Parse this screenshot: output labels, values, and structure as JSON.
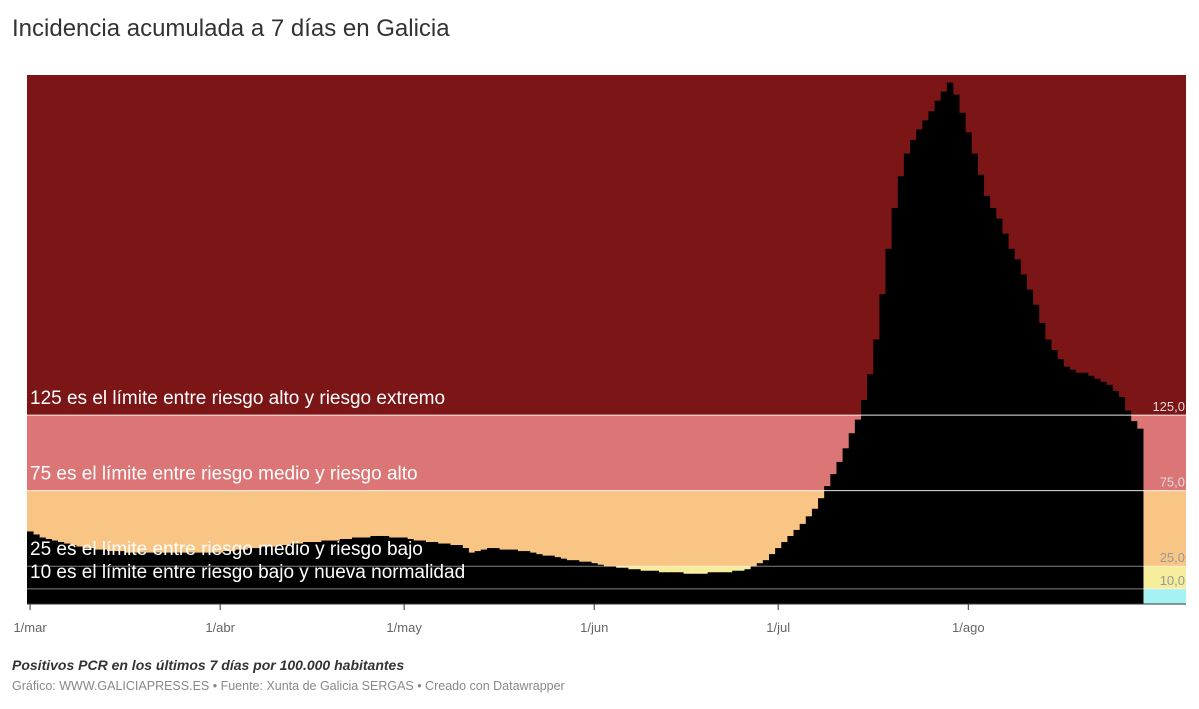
{
  "chart_data": {
    "type": "bar",
    "title": "Incidencia acumulada a 7 días en Galicia",
    "subtitle": "Positivos PCR en los últimos 7 días por 100.000 habitantes",
    "footer": "Gráfico: WWW.GALICIAPRESS.ES • Fuente: Xunta de Galicia SERGAS • Creado con Datawrapper",
    "color": "#000000",
    "xlim": [
      -0.5,
      188.5
    ],
    "ylim": [
      0,
      350
    ],
    "xticks": [
      {
        "value": 0,
        "label": "1/mar"
      },
      {
        "value": 31,
        "label": "1/abr"
      },
      {
        "value": 61,
        "label": "1/may"
      },
      {
        "value": 92,
        "label": "1/jun"
      },
      {
        "value": 122,
        "label": "1/jul"
      },
      {
        "value": 153,
        "label": "1/ago"
      }
    ],
    "yticks": [
      {
        "value": 125,
        "label": "125,0"
      },
      {
        "value": 75,
        "label": "75,0"
      },
      {
        "value": 25,
        "label": "25,0"
      },
      {
        "value": 10,
        "label": "10,0"
      }
    ],
    "zones": [
      {
        "from": 0,
        "to": 10,
        "color": "#a6f1f1"
      },
      {
        "from": 10,
        "to": 25,
        "color": "#f5ec9c"
      },
      {
        "from": 25,
        "to": 75,
        "color": "#f9c584"
      },
      {
        "from": 75,
        "to": 125,
        "color": "#dc7575"
      },
      {
        "from": 125,
        "to": 350,
        "color": "#7c1515"
      }
    ],
    "annotations": [
      {
        "value": 125,
        "text": "125 es el límite entre riesgo alto y riesgo extremo"
      },
      {
        "value": 75,
        "text": "75 es el límite entre riesgo medio y riesgo alto"
      },
      {
        "value": 25,
        "text": "25 es el límite entre riesgo medio y riesgo bajo"
      },
      {
        "value": 10,
        "text": "10 es el límite entre riesgo bajo y nueva normalidad"
      }
    ],
    "x": [
      0,
      1,
      2,
      3,
      4,
      5,
      6,
      7,
      8,
      9,
      10,
      11,
      12,
      13,
      14,
      15,
      16,
      17,
      18,
      19,
      20,
      21,
      22,
      23,
      24,
      25,
      26,
      27,
      28,
      29,
      30,
      31,
      32,
      33,
      34,
      35,
      36,
      37,
      38,
      39,
      40,
      41,
      42,
      43,
      44,
      45,
      46,
      47,
      48,
      49,
      50,
      51,
      52,
      53,
      54,
      55,
      56,
      57,
      58,
      59,
      60,
      61,
      62,
      63,
      64,
      65,
      66,
      67,
      68,
      69,
      70,
      71,
      72,
      73,
      74,
      75,
      76,
      77,
      78,
      79,
      80,
      81,
      82,
      83,
      84,
      85,
      86,
      87,
      88,
      89,
      90,
      91,
      92,
      93,
      94,
      95,
      96,
      97,
      98,
      99,
      100,
      101,
      102,
      103,
      104,
      105,
      106,
      107,
      108,
      109,
      110,
      111,
      112,
      113,
      114,
      115,
      116,
      117,
      118,
      119,
      120,
      121,
      122,
      123,
      124,
      125,
      126,
      127,
      128,
      129,
      130,
      131,
      132,
      133,
      134,
      135,
      136,
      137,
      138,
      139,
      140,
      141,
      142,
      143,
      144,
      145,
      146,
      147,
      148,
      149,
      150,
      151,
      152,
      153,
      154,
      155,
      156,
      157,
      158,
      159,
      160,
      161,
      162,
      163,
      164,
      165,
      166,
      167,
      168,
      169,
      170,
      171,
      172,
      173,
      174,
      175,
      176,
      177,
      178,
      179,
      180,
      181
    ],
    "values": [
      48,
      46,
      44,
      43,
      42,
      41,
      40,
      39,
      38,
      37,
      37,
      36,
      36,
      35,
      35,
      35,
      34,
      34,
      34,
      34,
      34,
      34,
      34,
      34,
      34,
      34,
      34,
      34,
      34,
      34,
      34,
      34,
      35,
      35,
      36,
      36,
      37,
      37,
      38,
      38,
      38,
      39,
      39,
      40,
      40,
      41,
      41,
      41,
      42,
      42,
      42,
      43,
      43,
      44,
      44,
      44,
      45,
      45,
      45,
      44,
      44,
      44,
      43,
      42,
      42,
      41,
      41,
      40,
      40,
      39,
      39,
      37,
      34,
      35,
      36,
      37,
      37,
      36,
      36,
      36,
      35,
      35,
      34,
      33,
      32,
      32,
      31,
      30,
      29,
      29,
      28,
      28,
      27,
      26,
      25,
      25,
      24,
      24,
      23,
      23,
      22,
      22,
      22,
      21,
      21,
      21,
      21,
      20,
      20,
      20,
      20,
      21,
      21,
      21,
      21,
      22,
      22,
      23,
      25,
      27,
      29,
      33,
      37,
      41,
      45,
      49,
      53,
      58,
      63,
      70,
      78,
      86,
      94,
      103,
      113,
      122,
      135,
      152,
      175,
      205,
      235,
      262,
      283,
      298,
      307,
      314,
      320,
      326,
      333,
      339,
      345,
      337,
      325,
      312,
      298,
      284,
      270,
      262,
      255,
      245,
      235,
      228,
      218,
      208,
      198,
      186,
      175,
      168,
      162,
      157,
      155,
      153,
      153,
      151,
      149,
      147,
      145,
      141,
      137,
      128,
      121,
      116
    ]
  }
}
